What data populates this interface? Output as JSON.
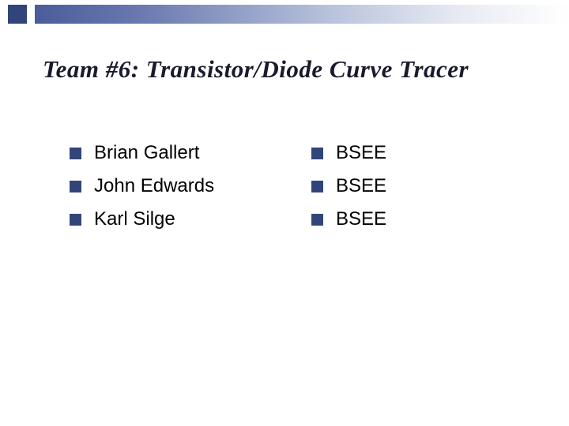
{
  "slide": {
    "title": "Team #6:  Transistor/Diode Curve Tracer",
    "background_color": "#ffffff",
    "accent_color": "#31457a",
    "gradient_start": "#4a5c9a",
    "gradient_end": "#ffffff",
    "title_color": "#1a1a2e",
    "title_fontsize": 31,
    "title_font": "Times New Roman",
    "body_fontsize": 24,
    "body_font": "Arial",
    "bullet_color": "#31457a",
    "bullet_size": 15,
    "left_column": [
      "Brian Gallert",
      "John Edwards",
      "Karl Silge"
    ],
    "right_column": [
      "BSEE",
      "BSEE",
      "BSEE"
    ]
  }
}
